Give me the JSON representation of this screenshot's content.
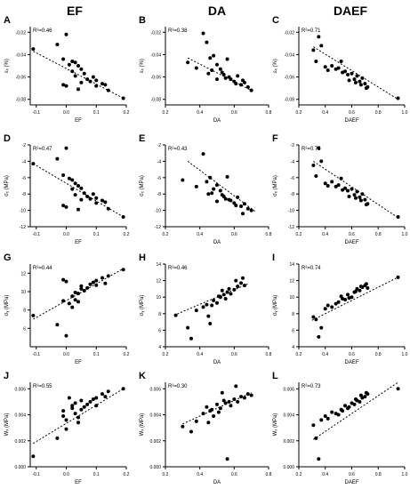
{
  "column_headers": [
    "EF",
    "DA",
    "DAEF"
  ],
  "chart_data": [
    {
      "panel": "A",
      "type": "scatter",
      "r2": "R²=0.46",
      "xlabel": "EF",
      "ylabel": "εₓ (%)",
      "xlim": [
        -0.12,
        0.2
      ],
      "ylim": [
        -0.085,
        -0.015
      ],
      "xticks": [
        -0.1,
        0.0,
        0.1,
        0.2
      ],
      "xticklabels": [
        "-0.1",
        "0.0",
        "0.1",
        "0.2"
      ],
      "yticks": [
        -0.02,
        -0.04,
        -0.06,
        -0.08
      ],
      "yticklabels": [
        "-0.02",
        "-0.04",
        "-0.06",
        "-0.08"
      ],
      "trend": [
        [
          -0.11,
          -0.037
        ],
        [
          0.19,
          -0.079
        ]
      ],
      "x": [
        -0.11,
        -0.03,
        0.0,
        -0.01,
        0.01,
        0.02,
        0.03,
        0.04,
        0.02,
        0.05,
        0.03,
        0.06,
        0.05,
        0.07,
        0.08,
        0.09,
        0.1,
        0.1,
        0.12,
        0.13,
        0.14,
        -0.01,
        0.0,
        0.04,
        0.19
      ],
      "y": [
        -0.035,
        -0.031,
        -0.022,
        -0.044,
        -0.049,
        -0.046,
        -0.047,
        -0.05,
        -0.055,
        -0.053,
        -0.059,
        -0.057,
        -0.065,
        -0.062,
        -0.064,
        -0.06,
        -0.063,
        -0.068,
        -0.066,
        -0.067,
        -0.072,
        -0.067,
        -0.068,
        -0.071,
        -0.079
      ]
    },
    {
      "panel": "B",
      "type": "scatter",
      "r2": "R²=0.38",
      "xlabel": "DA",
      "ylabel": "εₓ (%)",
      "xlim": [
        0.2,
        0.8
      ],
      "ylim": [
        -0.085,
        -0.015
      ],
      "xticks": [
        0.2,
        0.4,
        0.6,
        0.8
      ],
      "xticklabels": [
        "0.2",
        "0.4",
        "0.6",
        "0.8"
      ],
      "yticks": [
        -0.02,
        -0.04,
        -0.06,
        -0.08
      ],
      "yticklabels": [
        "-0.02",
        "-0.04",
        "-0.06",
        "-0.08"
      ],
      "trend": [
        [
          0.33,
          -0.043
        ],
        [
          0.7,
          -0.072
        ]
      ],
      "x": [
        0.33,
        0.38,
        0.42,
        0.44,
        0.46,
        0.48,
        0.5,
        0.45,
        0.52,
        0.54,
        0.55,
        0.56,
        0.58,
        0.6,
        0.62,
        0.64,
        0.66,
        0.68,
        0.7,
        0.47,
        0.5,
        0.53,
        0.57,
        0.61,
        0.65
      ],
      "y": [
        -0.047,
        -0.052,
        -0.021,
        -0.029,
        -0.043,
        -0.041,
        -0.049,
        -0.057,
        -0.053,
        -0.058,
        -0.061,
        -0.044,
        -0.062,
        -0.064,
        -0.059,
        -0.067,
        -0.065,
        -0.069,
        -0.072,
        -0.054,
        -0.062,
        -0.056,
        -0.06,
        -0.066,
        -0.063
      ]
    },
    {
      "panel": "C",
      "type": "scatter",
      "r2": "R²=0.71",
      "xlabel": "DAEF",
      "ylabel": "εₓ (%)",
      "xlim": [
        0.2,
        1.0
      ],
      "ylim": [
        -0.085,
        -0.015
      ],
      "xticks": [
        0.2,
        0.4,
        0.6,
        0.8,
        1.0
      ],
      "xticklabels": [
        "0.2",
        "0.4",
        "0.6",
        "0.8",
        "1.0"
      ],
      "yticks": [
        -0.02,
        -0.04,
        -0.06,
        -0.08
      ],
      "yticklabels": [
        "-0.02",
        "-0.04",
        "-0.06",
        "-0.08"
      ],
      "trend": [
        [
          0.31,
          -0.033
        ],
        [
          0.95,
          -0.08
        ]
      ],
      "x": [
        0.31,
        0.33,
        0.35,
        0.37,
        0.42,
        0.45,
        0.5,
        0.52,
        0.55,
        0.57,
        0.6,
        0.62,
        0.64,
        0.66,
        0.68,
        0.7,
        0.72,
        0.58,
        0.63,
        0.67,
        0.71,
        0.95,
        0.4,
        0.48,
        0.53
      ],
      "y": [
        -0.036,
        -0.046,
        -0.024,
        -0.032,
        -0.054,
        -0.05,
        -0.052,
        -0.046,
        -0.055,
        -0.058,
        -0.057,
        -0.062,
        -0.059,
        -0.064,
        -0.061,
        -0.066,
        -0.069,
        -0.063,
        -0.065,
        -0.067,
        -0.07,
        -0.079,
        -0.051,
        -0.053,
        -0.056
      ]
    },
    {
      "panel": "D",
      "type": "scatter",
      "r2": "R²=0.47",
      "xlabel": "EF",
      "ylabel": "σₓ (MPa)",
      "xlim": [
        -0.12,
        0.2
      ],
      "ylim": [
        -12,
        -2
      ],
      "xticks": [
        -0.1,
        0.0,
        0.1,
        0.2
      ],
      "xticklabels": [
        "-0.1",
        "0.0",
        "0.1",
        "0.2"
      ],
      "yticks": [
        -2,
        -4,
        -6,
        -8,
        -10,
        -12
      ],
      "yticklabels": [
        "-2",
        "-4",
        "-6",
        "-8",
        "-10",
        "-12"
      ],
      "trend": [
        [
          -0.11,
          -4.3
        ],
        [
          0.19,
          -10.8
        ]
      ],
      "x": [
        -0.11,
        -0.03,
        0.0,
        -0.01,
        0.01,
        0.02,
        0.03,
        0.04,
        0.02,
        0.05,
        0.03,
        0.06,
        0.05,
        0.07,
        0.08,
        0.09,
        0.1,
        0.1,
        0.12,
        0.13,
        0.14,
        -0.01,
        0.0,
        0.04,
        0.19
      ],
      "y": [
        -4.3,
        -3.7,
        -2.4,
        -5.7,
        -6.1,
        -6.3,
        -6.7,
        -7.0,
        -7.4,
        -7.3,
        -8.1,
        -7.9,
        -8.7,
        -8.3,
        -8.6,
        -8.0,
        -8.5,
        -9.1,
        -8.8,
        -9.0,
        -9.8,
        -9.4,
        -9.6,
        -9.9,
        -10.8
      ]
    },
    {
      "panel": "E",
      "type": "scatter",
      "r2": "R²=0.43",
      "xlabel": "DA",
      "ylabel": "σₓ (MPa)",
      "xlim": [
        0.2,
        0.8
      ],
      "ylim": [
        -12,
        -2
      ],
      "xticks": [
        0.2,
        0.4,
        0.6,
        0.8
      ],
      "xticklabels": [
        "0.2",
        "0.4",
        "0.6",
        "0.8"
      ],
      "yticks": [
        -2,
        -4,
        -6,
        -8,
        -10,
        -12
      ],
      "yticklabels": [
        "-2",
        "-4",
        "-6",
        "-8",
        "-10",
        "-12"
      ],
      "trend": [
        [
          0.33,
          -4.0
        ],
        [
          0.72,
          -10.1
        ]
      ],
      "x": [
        0.3,
        0.38,
        0.42,
        0.44,
        0.46,
        0.48,
        0.5,
        0.45,
        0.52,
        0.54,
        0.55,
        0.56,
        0.58,
        0.6,
        0.62,
        0.64,
        0.66,
        0.68,
        0.7,
        0.47,
        0.5,
        0.53,
        0.57,
        0.61,
        0.65
      ],
      "y": [
        -6.3,
        -7.1,
        -3.1,
        -6.5,
        -6.0,
        -7.4,
        -6.9,
        -8.0,
        -7.6,
        -8.3,
        -8.6,
        -5.9,
        -8.8,
        -9.1,
        -8.4,
        -9.5,
        -9.2,
        -9.8,
        -10.0,
        -7.9,
        -8.9,
        -8.1,
        -8.7,
        -9.4,
        -10.4
      ]
    },
    {
      "panel": "F",
      "type": "scatter",
      "r2": "R²=0.75",
      "xlabel": "DAEF",
      "ylabel": "σₓ (MPa)",
      "xlim": [
        0.2,
        1.0
      ],
      "ylim": [
        -12,
        -2
      ],
      "xticks": [
        0.2,
        0.4,
        0.6,
        0.8,
        1.0
      ],
      "xticklabels": [
        "0.2",
        "0.4",
        "0.6",
        "0.8",
        "1.0"
      ],
      "yticks": [
        -2,
        -4,
        -6,
        -8,
        -10,
        -12
      ],
      "yticklabels": [
        "-2",
        "-4",
        "-6",
        "-8",
        "-10",
        "-12"
      ],
      "trend": [
        [
          0.31,
          -4.0
        ],
        [
          0.95,
          -10.9
        ]
      ],
      "x": [
        0.31,
        0.33,
        0.35,
        0.37,
        0.42,
        0.45,
        0.5,
        0.52,
        0.55,
        0.57,
        0.6,
        0.62,
        0.64,
        0.66,
        0.68,
        0.7,
        0.72,
        0.58,
        0.63,
        0.67,
        0.71,
        0.95,
        0.4,
        0.48,
        0.53
      ],
      "y": [
        -4.5,
        -5.8,
        -2.4,
        -4.0,
        -7.0,
        -6.5,
        -6.9,
        -6.1,
        -7.3,
        -7.6,
        -7.4,
        -8.1,
        -7.7,
        -8.4,
        -8.0,
        -8.7,
        -9.2,
        -8.3,
        -8.5,
        -8.8,
        -9.3,
        -10.8,
        -6.7,
        -7.1,
        -7.5
      ]
    },
    {
      "panel": "G",
      "type": "scatter",
      "r2": "R²=0.44",
      "xlabel": "EF",
      "ylabel": "σᵧ (MPa)",
      "xlim": [
        -0.12,
        0.2
      ],
      "ylim": [
        4,
        13
      ],
      "xticks": [
        -0.1,
        0.0,
        0.1,
        0.2
      ],
      "xticklabels": [
        "-0.1",
        "0.0",
        "0.1",
        "0.2"
      ],
      "yticks": [
        6,
        8,
        10,
        12
      ],
      "yticklabels": [
        "6",
        "8",
        "10",
        "12"
      ],
      "trend": [
        [
          -0.11,
          7.0
        ],
        [
          0.19,
          12.5
        ]
      ],
      "x": [
        -0.11,
        -0.03,
        0.0,
        -0.01,
        0.01,
        0.02,
        0.03,
        0.04,
        0.02,
        0.05,
        0.03,
        0.06,
        0.05,
        0.07,
        0.08,
        0.09,
        0.1,
        0.1,
        0.12,
        0.13,
        0.14,
        -0.01,
        0.0,
        0.04,
        0.19
      ],
      "y": [
        7.4,
        6.4,
        5.2,
        9.0,
        8.7,
        9.5,
        9.1,
        9.8,
        8.3,
        10.3,
        9.9,
        10.1,
        10.6,
        10.4,
        10.8,
        11.0,
        10.7,
        11.2,
        11.5,
        10.9,
        11.7,
        11.3,
        11.1,
        8.9,
        12.4
      ]
    },
    {
      "panel": "H",
      "type": "scatter",
      "r2": "R²=0.46",
      "xlabel": "DA",
      "ylabel": "σᵧ (MPa)",
      "xlim": [
        0.2,
        0.8
      ],
      "ylim": [
        4,
        14
      ],
      "xticks": [
        0.2,
        0.4,
        0.6,
        0.8
      ],
      "xticklabels": [
        "0.2",
        "0.4",
        "0.6",
        "0.8"
      ],
      "yticks": [
        4,
        6,
        8,
        10,
        12,
        14
      ],
      "yticklabels": [
        "4",
        "6",
        "8",
        "10",
        "12",
        "14"
      ],
      "trend": [
        [
          0.25,
          7.8
        ],
        [
          0.68,
          11.6
        ]
      ],
      "x": [
        0.26,
        0.33,
        0.35,
        0.38,
        0.42,
        0.44,
        0.46,
        0.48,
        0.5,
        0.52,
        0.54,
        0.55,
        0.56,
        0.58,
        0.6,
        0.62,
        0.64,
        0.66,
        0.45,
        0.47,
        0.51,
        0.53,
        0.57,
        0.61,
        0.65
      ],
      "y": [
        7.8,
        6.3,
        5.0,
        8.4,
        8.8,
        9.1,
        6.8,
        9.6,
        9.3,
        10.0,
        10.3,
        9.8,
        10.6,
        10.4,
        10.9,
        11.3,
        11.7,
        11.4,
        7.7,
        9.0,
        10.1,
        10.8,
        11.0,
        12.0,
        12.3
      ]
    },
    {
      "panel": "I",
      "type": "scatter",
      "r2": "R²=0.74",
      "xlabel": "DAEF",
      "ylabel": "σᵧ (MPa)",
      "xlim": [
        0.2,
        1.0
      ],
      "ylim": [
        4,
        14
      ],
      "xticks": [
        0.2,
        0.4,
        0.6,
        0.8,
        1.0
      ],
      "xticklabels": [
        "0.2",
        "0.4",
        "0.6",
        "0.8",
        "1.0"
      ],
      "yticks": [
        4,
        6,
        8,
        10,
        12,
        14
      ],
      "yticklabels": [
        "4",
        "6",
        "8",
        "10",
        "12",
        "14"
      ],
      "trend": [
        [
          0.3,
          7.2
        ],
        [
          0.95,
          12.4
        ]
      ],
      "x": [
        0.31,
        0.33,
        0.35,
        0.37,
        0.42,
        0.45,
        0.5,
        0.52,
        0.55,
        0.57,
        0.6,
        0.62,
        0.64,
        0.66,
        0.68,
        0.7,
        0.72,
        0.58,
        0.63,
        0.67,
        0.71,
        0.95,
        0.4,
        0.48,
        0.53
      ],
      "y": [
        7.6,
        7.3,
        5.2,
        6.3,
        9.0,
        8.8,
        9.4,
        10.1,
        9.7,
        10.3,
        10.0,
        10.6,
        11.0,
        10.8,
        11.2,
        11.4,
        11.1,
        9.9,
        10.7,
        11.3,
        11.6,
        12.4,
        8.6,
        9.2,
        9.8
      ]
    },
    {
      "panel": "J",
      "type": "scatter",
      "r2": "R²=0.55",
      "xlabel": "EF",
      "ylabel": "Wₓ (MPa)",
      "xlim": [
        -0.12,
        0.2
      ],
      "ylim": [
        0.0,
        0.0065
      ],
      "xticks": [
        -0.1,
        0.0,
        0.1,
        0.2
      ],
      "xticklabels": [
        "-0.1",
        "0.0",
        "0.1",
        "0.2"
      ],
      "yticks": [
        0.0,
        0.002,
        0.004,
        0.006
      ],
      "yticklabels": [
        "0.000",
        "0.002",
        "0.004",
        "0.006"
      ],
      "trend": [
        [
          -0.11,
          0.0018
        ],
        [
          0.19,
          0.006
        ]
      ],
      "x": [
        -0.11,
        -0.03,
        0.0,
        -0.01,
        0.01,
        0.02,
        0.03,
        0.04,
        0.02,
        0.05,
        0.03,
        0.06,
        0.05,
        0.07,
        0.08,
        0.09,
        0.1,
        0.1,
        0.12,
        0.13,
        0.14,
        -0.01,
        0.0,
        0.04,
        0.19
      ],
      "y": [
        0.0008,
        0.0022,
        0.0036,
        0.0043,
        0.0053,
        0.0045,
        0.0041,
        0.0038,
        0.0047,
        0.0044,
        0.0049,
        0.0046,
        0.0051,
        0.0048,
        0.005,
        0.0052,
        0.0047,
        0.0053,
        0.0056,
        0.0054,
        0.0058,
        0.0039,
        0.0029,
        0.0034,
        0.006
      ]
    },
    {
      "panel": "K",
      "type": "scatter",
      "r2": "R²=0.30",
      "xlabel": "DA",
      "ylabel": "Wₓ (MPa)",
      "xlim": [
        0.2,
        0.8
      ],
      "ylim": [
        0.0,
        0.0065
      ],
      "xticks": [
        0.2,
        0.4,
        0.6,
        0.8
      ],
      "xticklabels": [
        "0.2",
        "0.4",
        "0.6",
        "0.8"
      ],
      "yticks": [
        0.0,
        0.002,
        0.004,
        0.006
      ],
      "yticklabels": [
        "0.000",
        "0.002",
        "0.004",
        "0.006"
      ],
      "trend": [
        [
          0.3,
          0.0033
        ],
        [
          0.7,
          0.0057
        ]
      ],
      "x": [
        0.3,
        0.35,
        0.38,
        0.42,
        0.44,
        0.46,
        0.48,
        0.5,
        0.52,
        0.54,
        0.55,
        0.56,
        0.58,
        0.6,
        0.62,
        0.64,
        0.66,
        0.68,
        0.7,
        0.45,
        0.47,
        0.51,
        0.53,
        0.57,
        0.61
      ],
      "y": [
        0.0031,
        0.0027,
        0.0035,
        0.0041,
        0.0046,
        0.0043,
        0.0039,
        0.0048,
        0.0045,
        0.0051,
        0.0049,
        0.0006,
        0.0047,
        0.0052,
        0.005,
        0.0054,
        0.0053,
        0.0056,
        0.0055,
        0.0034,
        0.0044,
        0.0042,
        0.0057,
        0.005,
        0.0062
      ]
    },
    {
      "panel": "L",
      "type": "scatter",
      "r2": "R²=0.73",
      "xlabel": "DAEF",
      "ylabel": "Wₓ (MPa)",
      "xlim": [
        0.2,
        1.0
      ],
      "ylim": [
        0.0,
        0.0065
      ],
      "xticks": [
        0.2,
        0.4,
        0.6,
        0.8,
        1.0
      ],
      "xticklabels": [
        "0.2",
        "0.4",
        "0.6",
        "0.8",
        "1.0"
      ],
      "yticks": [
        0.0,
        0.002,
        0.004,
        0.006
      ],
      "yticklabels": [
        "0.000",
        "0.002",
        "0.004",
        "0.006"
      ],
      "trend": [
        [
          0.31,
          0.0021
        ],
        [
          0.95,
          0.0065
        ]
      ],
      "x": [
        0.31,
        0.33,
        0.35,
        0.37,
        0.42,
        0.45,
        0.5,
        0.52,
        0.55,
        0.57,
        0.6,
        0.62,
        0.64,
        0.66,
        0.68,
        0.7,
        0.72,
        0.58,
        0.63,
        0.67,
        0.71,
        0.95,
        0.4,
        0.48,
        0.53
      ],
      "y": [
        0.0032,
        0.0022,
        0.0006,
        0.0036,
        0.0037,
        0.0042,
        0.004,
        0.0044,
        0.0047,
        0.0045,
        0.0049,
        0.0048,
        0.0051,
        0.005,
        0.0053,
        0.0054,
        0.0056,
        0.0046,
        0.0052,
        0.0055,
        0.0057,
        0.006,
        0.0039,
        0.0041,
        0.0043
      ]
    }
  ]
}
